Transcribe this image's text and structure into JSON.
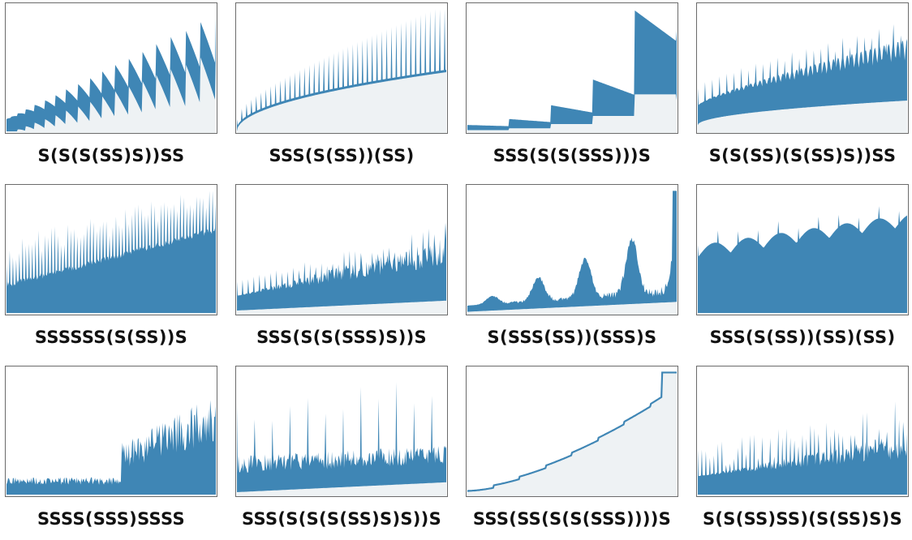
{
  "colors": {
    "series": "#3f86b5",
    "under_fill": "#eef2f4",
    "frame": "#6b6b6b"
  },
  "chart_data": [
    {
      "type": "line",
      "title": "S(S(S(SS)S))SS",
      "variant": "sawtooth"
    },
    {
      "type": "line",
      "title": "SSS(S(SS))(SS)",
      "variant": "spikes-sqrt"
    },
    {
      "type": "line",
      "title": "SSS(S(S(SSS)))S",
      "variant": "blocks"
    },
    {
      "type": "line",
      "title": "S(S(SS)(S(SS)S))SS",
      "variant": "spiky-floor"
    },
    {
      "type": "line",
      "title": "SSSSSS(S(SS))S",
      "variant": "dense-spikes"
    },
    {
      "type": "line",
      "title": "SSS(S(S(SSS)S))S",
      "variant": "band"
    },
    {
      "type": "line",
      "title": "S(SSS(SS))(SSS)S",
      "variant": "bursts"
    },
    {
      "type": "line",
      "title": "SSS(S(SS))(SS)(SS)",
      "variant": "plateau"
    },
    {
      "type": "line",
      "title": "SSSS(SSS)SSSS",
      "variant": "step-jump"
    },
    {
      "type": "line",
      "title": "SSS(S(S(S(SS)S)S))S",
      "variant": "tall-spikes"
    },
    {
      "type": "line",
      "title": "SSS(SS(S(S(SSS))))S",
      "variant": "staircase"
    },
    {
      "type": "line",
      "title": "S(S(SS)SS)(S(SS)S)S",
      "variant": "jagged"
    }
  ]
}
